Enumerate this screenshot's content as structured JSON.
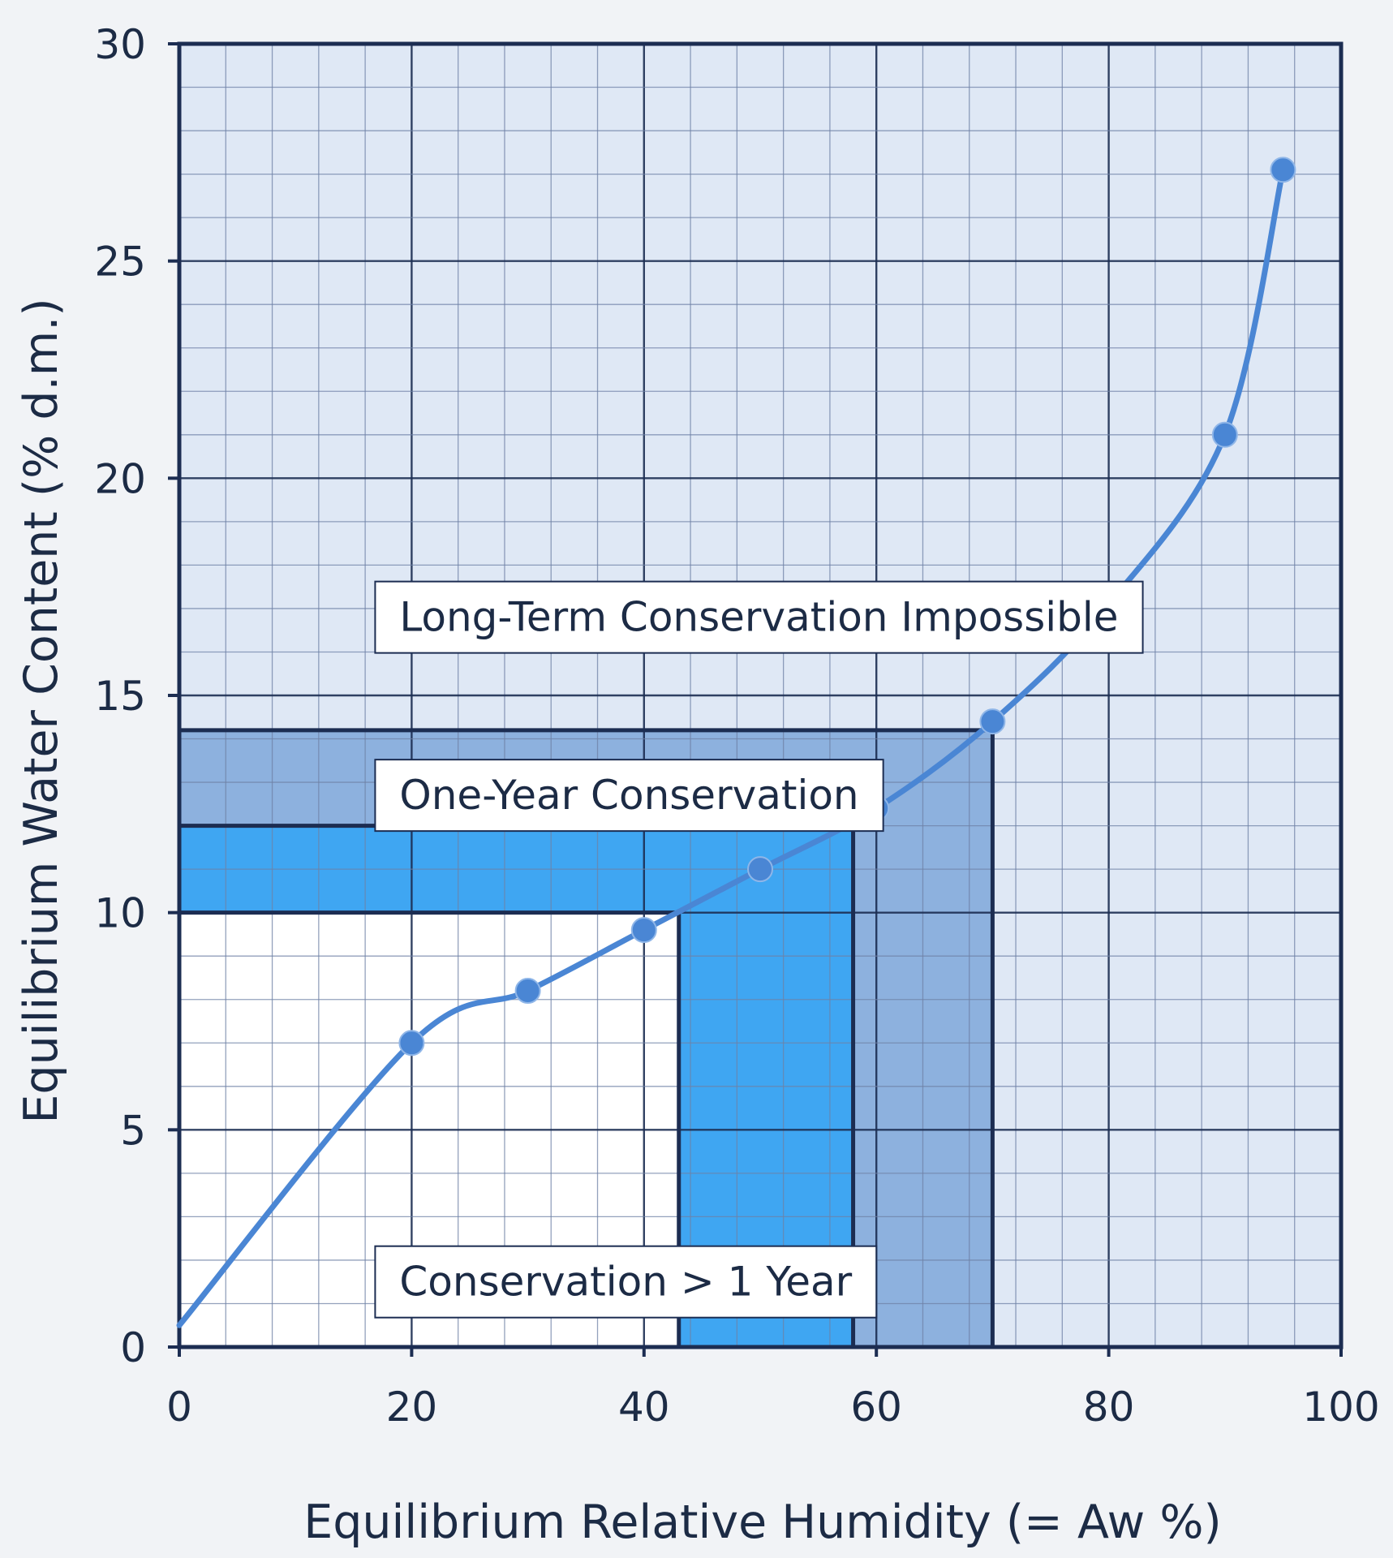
{
  "chart_data": {
    "type": "line",
    "title": "",
    "xlabel": "Equilibrium Relative Humidity (= Aw %)",
    "ylabel": "Equilibrium Water Content (% d.m.)",
    "xlim": [
      0,
      100
    ],
    "ylim": [
      0,
      30
    ],
    "x_ticks": [
      0,
      20,
      40,
      60,
      80,
      100
    ],
    "y_ticks": [
      0,
      5,
      10,
      15,
      20,
      25,
      30
    ],
    "grid": true,
    "series": [
      {
        "x": [
          0,
          20,
          30,
          40,
          50,
          60,
          70,
          80,
          90,
          95
        ],
        "y": [
          0.5,
          7.0,
          8.2,
          9.6,
          11.0,
          12.4,
          14.4,
          17.1,
          21.0,
          27.1
        ]
      }
    ],
    "zones": [
      {
        "label": "Conservation > 1 Year",
        "x_max": 43,
        "y_max": 10
      },
      {
        "label": "One-Year Conservation",
        "x_max": 58,
        "y_max": 12
      },
      {
        "label": "",
        "x_max": 70,
        "y_max": 14.2
      },
      {
        "label": "Long-Term Conservation Impossible",
        "x_max": 100,
        "y_max": 30
      }
    ],
    "colors": {
      "background": "#f1f3f6",
      "plot_area": "#dfe8f5",
      "grid_minor": "#6f82a6",
      "grid_major": "#1c2d52",
      "zone_one_year": "#3fa6f2",
      "zone_transition": "#7fa7d9",
      "zone_below_one_year": "#ffffff",
      "curve": "#4a86d4",
      "text": "#1c2b45",
      "frame": "#1c2d52"
    }
  }
}
